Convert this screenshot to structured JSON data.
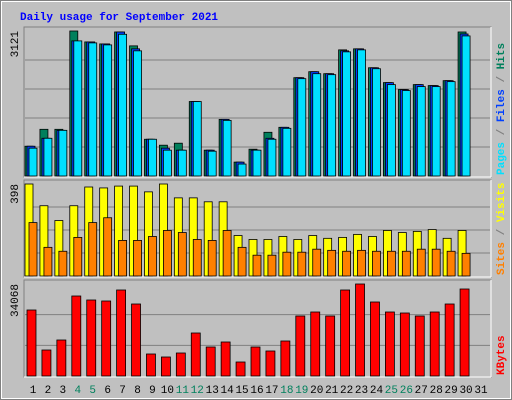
{
  "title": "Daily usage for September 2021",
  "legend_separator": " / ",
  "highlight_color": "#00805c",
  "highlight": [
    3,
    4,
    10,
    11,
    17,
    18,
    24,
    25
  ],
  "chart_data": [
    {
      "type": "bar",
      "ylim": [
        0,
        3121
      ],
      "yticks": [
        3121
      ],
      "series": [
        {
          "name": "Hits",
          "color": "#00805c",
          "values": [
            641,
            1005,
            1005,
            3121,
            2886,
            2843,
            3100,
            2801,
            791,
            663,
            706,
            1603,
            556,
            1219,
            299,
            577,
            941,
            1048,
            2116,
            2245,
            2202,
            2715,
            2737,
            2330,
            2010,
            1860,
            1967,
            1946,
            2052,
            3100,
            null
          ]
        },
        {
          "name": "Files",
          "color": "#0040ff",
          "values": [
            641,
            812,
            983,
            2908,
            2886,
            2843,
            3100,
            2737,
            791,
            599,
            556,
            1603,
            556,
            1219,
            299,
            556,
            812,
            1048,
            2116,
            2245,
            2202,
            2694,
            2737,
            2330,
            2010,
            1860,
            1967,
            1946,
            2052,
            3057,
            null
          ]
        },
        {
          "name": "Pages",
          "color": "#00e0ff",
          "values": [
            599,
            812,
            983,
            2908,
            2865,
            2822,
            3050,
            2694,
            791,
            556,
            556,
            1603,
            534,
            1197,
            257,
            556,
            791,
            1026,
            2095,
            2202,
            2181,
            2672,
            2715,
            2309,
            1967,
            1839,
            1924,
            1924,
            2031,
            3015,
            null
          ]
        }
      ]
    },
    {
      "type": "bar",
      "ylim": [
        0,
        398
      ],
      "yticks": [
        398
      ],
      "series": [
        {
          "name": "Visits",
          "color": "#ffff00",
          "values": [
            398,
            304,
            240,
            304,
            385,
            381,
            389,
            389,
            364,
            398,
            338,
            338,
            321,
            321,
            175,
            158,
            158,
            171,
            158,
            175,
            163,
            167,
            180,
            171,
            197,
            188,
            193,
            201,
            163,
            197,
            null
          ]
        },
        {
          "name": "Sites",
          "color": "#ff8000",
          "values": [
            231,
            124,
            107,
            167,
            231,
            252,
            154,
            154,
            171,
            197,
            188,
            158,
            154,
            197,
            124,
            90,
            90,
            103,
            103,
            116,
            111,
            107,
            111,
            107,
            107,
            107,
            116,
            116,
            107,
            98,
            null
          ]
        }
      ]
    },
    {
      "type": "bar",
      "ylim": [
        0,
        34068
      ],
      "yticks": [
        34068
      ],
      "categories": [
        "1",
        "2",
        "3",
        "4",
        "5",
        "6",
        "7",
        "8",
        "9",
        "10",
        "11",
        "12",
        "13",
        "14",
        "15",
        "16",
        "17",
        "18",
        "19",
        "20",
        "21",
        "22",
        "23",
        "24",
        "25",
        "26",
        "27",
        "28",
        "29",
        "30",
        "31"
      ],
      "series": [
        {
          "name": "KBytes",
          "color": "#ff0000",
          "values": [
            24440,
            9628,
            13331,
            29624,
            28143,
            27773,
            31846,
            26662,
            8147,
            7036,
            8517,
            15923,
            10739,
            12591,
            5184,
            10739,
            9258,
            12961,
            22218,
            23699,
            22218,
            31846,
            34068,
            27402,
            23699,
            23329,
            22218,
            23699,
            26662,
            32216,
            null
          ]
        }
      ]
    }
  ]
}
